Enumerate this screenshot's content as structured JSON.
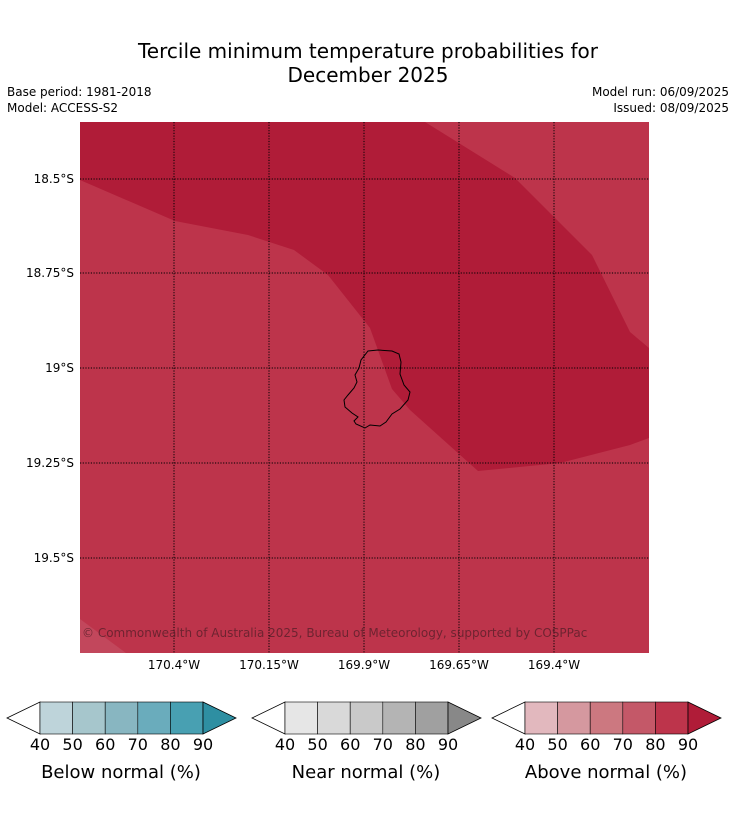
{
  "title_line1": "Tercile minimum temperature probabilities for",
  "title_line2": "December 2025",
  "base_period": "Base period: 1981-2018",
  "model": "Model: ACCESS-S2",
  "model_run": "Model run: 06/09/2025",
  "issued": "Issued: 08/09/2025",
  "copyright": "© Commonwealth of Australia 2025, Bureau of Meteorology, supported by COSPPac",
  "lat_labels": [
    "18.5°S",
    "18.75°S",
    "19°S",
    "19.25°S",
    "19.5°S"
  ],
  "lon_labels": [
    "170.4°W",
    "170.15°W",
    "169.9°W",
    "169.65°W",
    "169.4°W"
  ],
  "colors": {
    "above_70_80": "#bd344b",
    "above_80_90": "#b01c38",
    "gridline": "#000000"
  },
  "colorbars": [
    {
      "label": "Below normal (%)",
      "ticks": [
        "40",
        "50",
        "60",
        "70",
        "80",
        "90"
      ],
      "colors": [
        "#ffffff",
        "#bed4da",
        "#a6c6cc",
        "#88b6c1",
        "#6aacbc",
        "#48a0b2",
        "#2e8fa2"
      ]
    },
    {
      "label": "Near normal (%)",
      "ticks": [
        "40",
        "50",
        "60",
        "70",
        "80",
        "90"
      ],
      "colors": [
        "#ffffff",
        "#e6e6e6",
        "#d9d9d9",
        "#c9c9c9",
        "#b4b4b4",
        "#a0a0a0",
        "#888888"
      ]
    },
    {
      "label": "Above normal (%)",
      "ticks": [
        "40",
        "50",
        "60",
        "70",
        "80",
        "90"
      ],
      "colors": [
        "#ffffff",
        "#e2b8be",
        "#d5989f",
        "#cc7880",
        "#c45868",
        "#bd344b",
        "#b01c38"
      ]
    }
  ]
}
